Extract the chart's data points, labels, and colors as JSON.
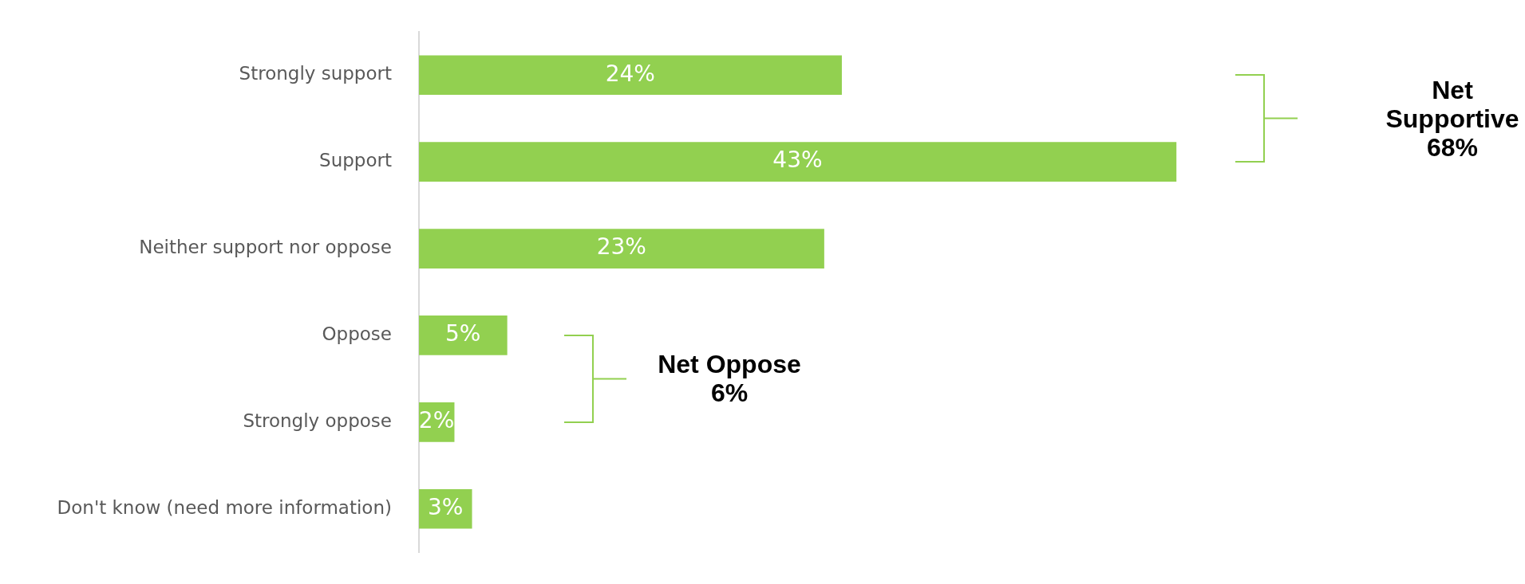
{
  "chart_data": {
    "type": "bar",
    "orientation": "horizontal",
    "categories": [
      "Strongly support",
      "Support",
      "Neither support nor oppose",
      "Oppose",
      "Strongly oppose",
      "Don't know (need more information)"
    ],
    "values": [
      24,
      43,
      23,
      5,
      2,
      3
    ],
    "value_labels": [
      "24%",
      "43%",
      "23%",
      "5%",
      "2%",
      "3%"
    ],
    "color": "#92d050",
    "legend": false,
    "annotations": [
      "Net Supportive 68%",
      "Net Oppose 6%"
    ]
  }
}
